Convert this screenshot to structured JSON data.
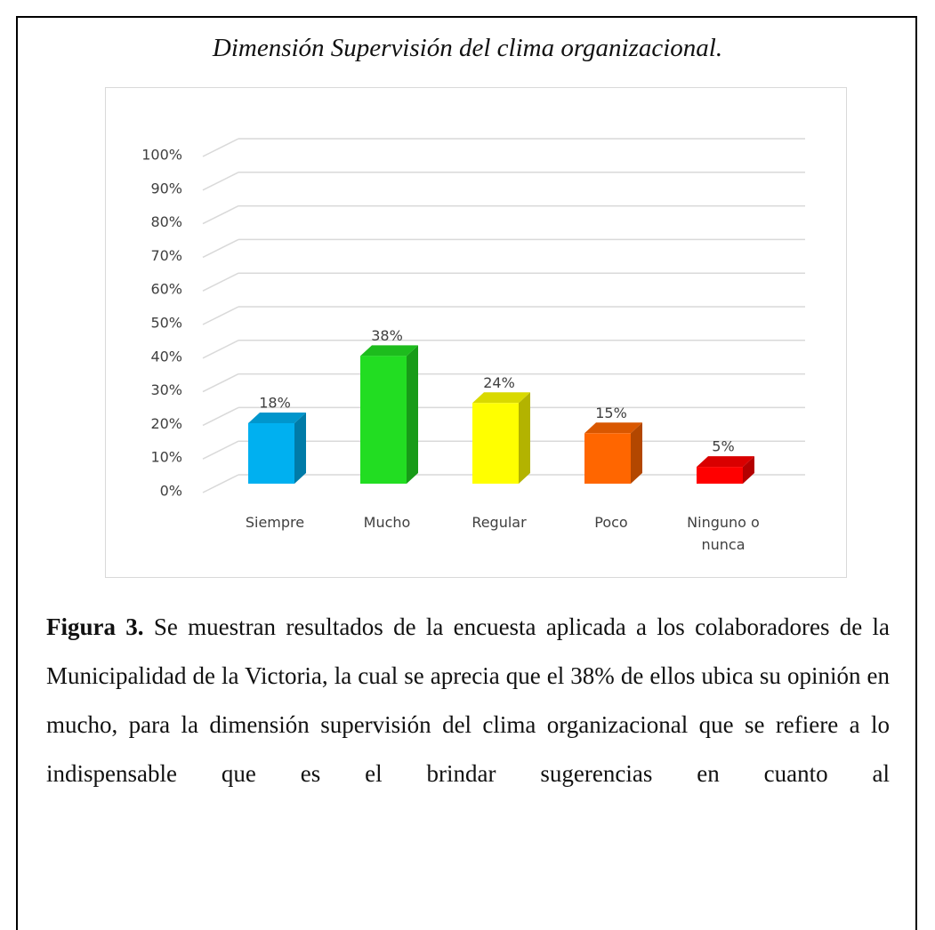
{
  "title": "Dimensión Supervisión del clima organizacional.",
  "chart_data": {
    "type": "bar3d",
    "categories": [
      "Siempre",
      "Mucho",
      "Regular",
      "Poco",
      "Ninguno o nunca"
    ],
    "values": [
      18,
      38,
      24,
      15,
      5
    ],
    "value_labels": [
      "18%",
      "38%",
      "24%",
      "15%",
      "5%"
    ],
    "colors": [
      "#00b0f0",
      "#22dd22",
      "#ffff00",
      "#ff6600",
      "#ff0000"
    ],
    "ylim": [
      0,
      100
    ],
    "yticks": [
      {
        "value": 0,
        "label": "0%"
      },
      {
        "value": 10,
        "label": "10%"
      },
      {
        "value": 20,
        "label": "20%"
      },
      {
        "value": 30,
        "label": "30%"
      },
      {
        "value": 40,
        "label": "40%"
      },
      {
        "value": 50,
        "label": "50%"
      },
      {
        "value": 60,
        "label": "60%"
      },
      {
        "value": 70,
        "label": "70%"
      },
      {
        "value": 80,
        "label": "80%"
      },
      {
        "value": 90,
        "label": "90%"
      },
      {
        "value": 100,
        "label": "100%"
      }
    ],
    "grid": true
  },
  "caption": {
    "label": "Figura 3.",
    "text": "Se muestran resultados de la encuesta aplicada a los colaboradores de la Municipalidad de la Victoria, la cual se aprecia que el 38% de ellos ubica su opinión en mucho, para la dimensión supervisión del clima organizacional que se refiere a lo indispensable que es el brindar sugerencias en cuanto al"
  }
}
